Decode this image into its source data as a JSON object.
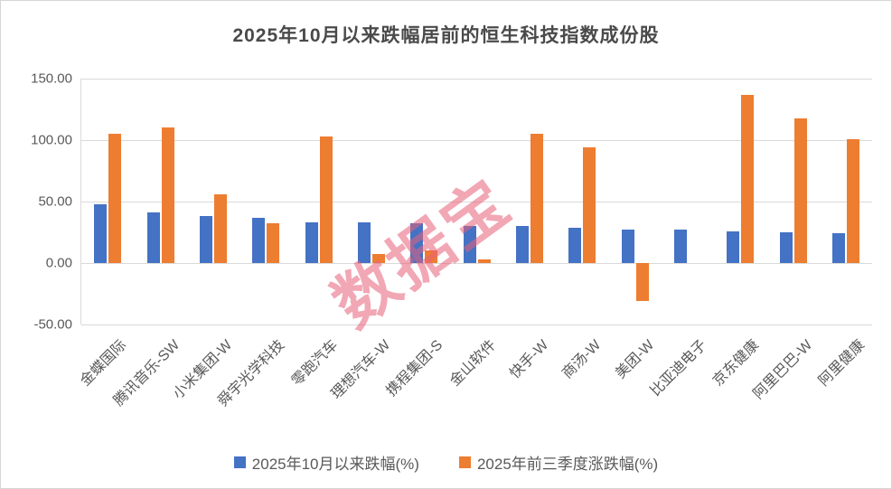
{
  "title": "2025年10月以来跌幅居前的恒生科技指数成份股",
  "watermark": "数据宝",
  "colors": {
    "series_decline": "#4472C4",
    "series_ytd": "#ED7D31",
    "gridline": "#D9D9D9",
    "axis_text": "#595959",
    "title_text": "#4A4A4A",
    "watermark": "#E8607A"
  },
  "y_axis": {
    "tick_labels": [
      "150.00",
      "100.00",
      "50.00",
      "0.00",
      "-50.00"
    ],
    "tick_values": [
      150,
      100,
      50,
      0,
      -50
    ],
    "max": 150,
    "min": -50
  },
  "legend": [
    {
      "label": "2025年10月以来跌幅(%)",
      "color": "#4472C4"
    },
    {
      "label": "2025年前三季度涨跌幅(%)",
      "color": "#ED7D31"
    }
  ],
  "chart_data": {
    "type": "bar",
    "title": "2025年10月以来跌幅居前的恒生科技指数成份股",
    "categories": [
      "金蝶国际",
      "腾讯音乐-SW",
      "小米集团-W",
      "舜宇光学科技",
      "零跑汽车",
      "理想汽车-W",
      "携程集团-S",
      "金山软件",
      "快手-W",
      "商汤-W",
      "美团-W",
      "比亚迪电子",
      "京东健康",
      "阿里巴巴-W",
      "阿里健康"
    ],
    "series": [
      {
        "name": "2025年10月以来跌幅(%)",
        "color": "#4472C4",
        "values": [
          48,
          41,
          38,
          37,
          33,
          33,
          32,
          30,
          30,
          29,
          27,
          27,
          26,
          25,
          24
        ]
      },
      {
        "name": "2025年前三季度涨跌幅(%)",
        "color": "#ED7D31",
        "values": [
          105,
          110,
          56,
          32,
          103,
          7,
          10,
          3,
          105,
          94,
          -31,
          0,
          137,
          118,
          101
        ]
      }
    ],
    "xlabel": "",
    "ylabel": "",
    "ylim": [
      -50,
      150
    ],
    "yticks": [
      150,
      100,
      50,
      0,
      -50
    ],
    "grid": true,
    "legend_position": "bottom",
    "x_tick_rotation": 45
  }
}
